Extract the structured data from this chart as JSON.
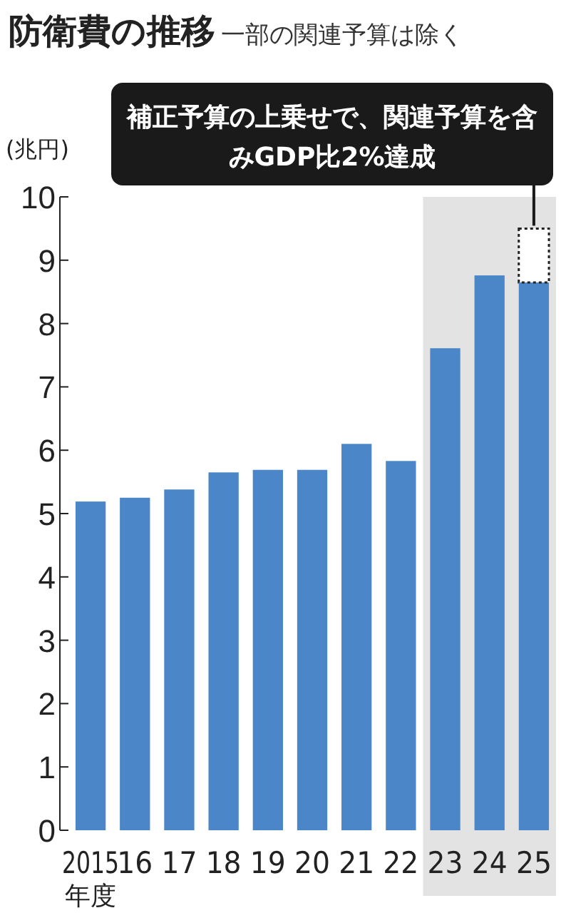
{
  "chart_data": {
    "type": "bar",
    "title": "防衛費の推移",
    "subtitle": "一部の関連予算は除く",
    "ylabel": "(兆円)",
    "xlabel": "年度",
    "categories": [
      "2015",
      "16",
      "17",
      "18",
      "19",
      "20",
      "21",
      "22",
      "23",
      "24",
      "25"
    ],
    "stacked": true,
    "series": [
      {
        "color": "#4a86c8",
        "values": [
          5.19,
          5.25,
          5.38,
          5.65,
          5.69,
          5.69,
          6.1,
          5.83,
          7.61,
          8.76,
          8.65
        ]
      },
      {
        "color": "#ffffff",
        "line_style": "dotted",
        "values": [
          null,
          null,
          null,
          null,
          null,
          null,
          null,
          null,
          null,
          null,
          0.85
        ]
      }
    ],
    "ylim": [
      0,
      10
    ],
    "yticks": [
      0,
      1,
      2,
      3,
      4,
      5,
      6,
      7,
      8,
      9,
      10
    ],
    "bands": [
      {
        "axis": "x",
        "from": "23",
        "to": "25",
        "color": "#e3e3e3"
      }
    ],
    "annotations": [
      {
        "text": "補正予算の上乗せで、関連予算を含みGDP比2%達成",
        "x": "25",
        "y": 9.5
      }
    ]
  }
}
